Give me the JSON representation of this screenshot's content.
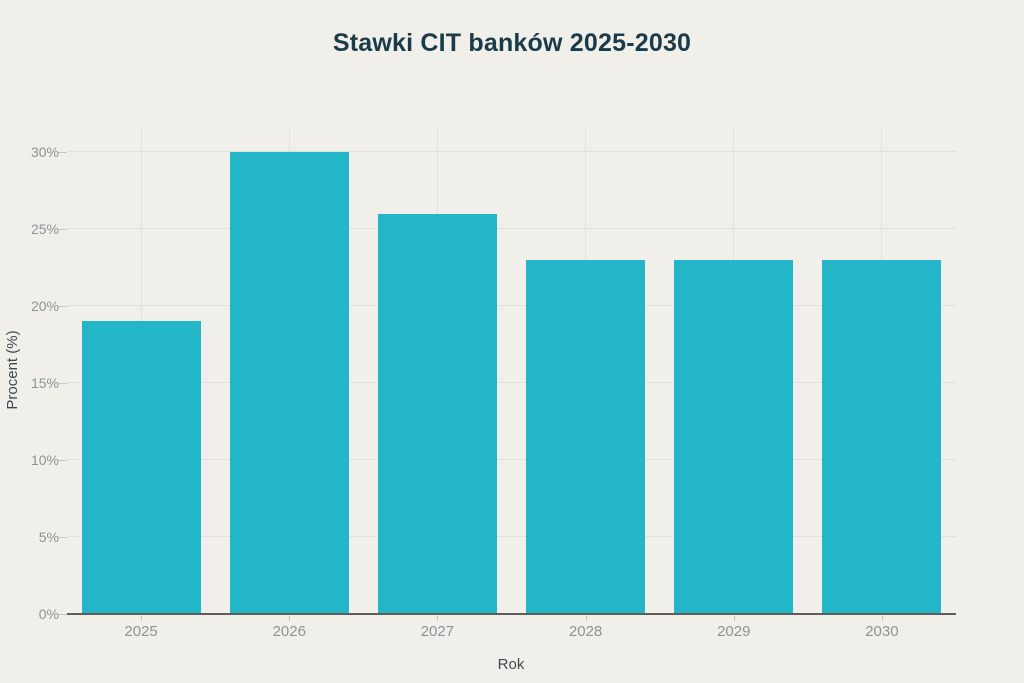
{
  "chart_data": {
    "type": "bar",
    "title": "Stawki CIT banków 2025-2030",
    "xlabel": "Rok",
    "ylabel": "Procent (%)",
    "categories": [
      "2025",
      "2026",
      "2027",
      "2028",
      "2029",
      "2030"
    ],
    "values": [
      19,
      30,
      26,
      23,
      23,
      23
    ],
    "yticks": [
      0,
      5,
      10,
      15,
      20,
      25,
      30
    ],
    "ytick_labels": [
      "0%",
      "5%",
      "10%",
      "15%",
      "20%",
      "25%",
      "30%"
    ],
    "ylim": [
      0,
      31.7
    ],
    "grid": true,
    "legend_position": "none",
    "colors": {
      "bar": "#23b6c8",
      "background": "#f0efe9",
      "title": "#1a3b4a",
      "axis_label": "#3b4a54",
      "tick_label": "#8e9399",
      "gridline": "#e1e0d9",
      "axis_line": "#5f5d56"
    }
  }
}
